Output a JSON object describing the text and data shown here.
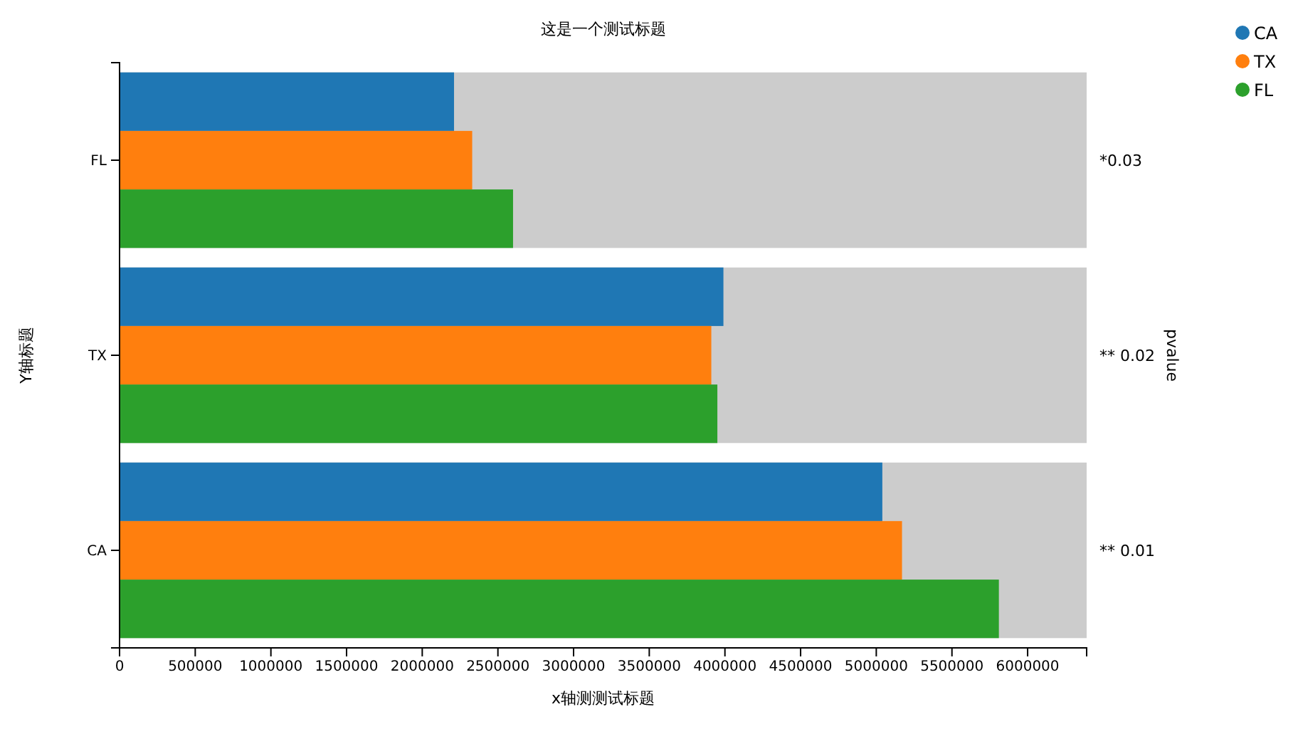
{
  "chart_data": {
    "type": "bar",
    "orientation": "horizontal",
    "title": "这是一个测试标题",
    "xlabel": "x轴测测试标题",
    "ylabel": "Y轴标题",
    "y2label": "pvalue",
    "categories": [
      "FL",
      "TX",
      "CA"
    ],
    "y2_categories": [
      "*0.03",
      "** 0.02",
      "** 0.01"
    ],
    "series": [
      {
        "name": "CA",
        "color": "#1f77b4",
        "values": [
          2210000,
          3990000,
          5040000
        ]
      },
      {
        "name": "TX",
        "color": "#ff7f0e",
        "values": [
          2330000,
          3910000,
          5170000
        ]
      },
      {
        "name": "FL",
        "color": "#2ca02c",
        "values": [
          2600000,
          3950000,
          5810000
        ]
      }
    ],
    "bands": [
      {
        "axis": "y",
        "from": "FL",
        "to": "FL",
        "color": "#cccccc"
      },
      {
        "axis": "y",
        "from": "TX",
        "to": "TX",
        "color": "#cccccc"
      },
      {
        "axis": "y",
        "from": "CA",
        "to": "CA",
        "color": "#cccccc"
      }
    ],
    "xlim": [
      0,
      6390000
    ],
    "xticks": [
      0,
      500000,
      1000000,
      1500000,
      2000000,
      2500000,
      3000000,
      3500000,
      4000000,
      4500000,
      5000000,
      5500000,
      6000000
    ],
    "legend": "top right",
    "grid": false
  }
}
